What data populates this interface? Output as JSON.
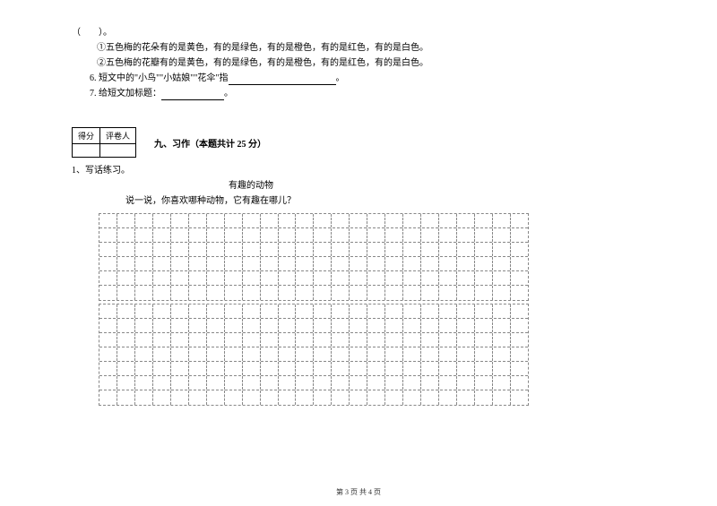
{
  "top": {
    "paren": "（　　）。",
    "option1": "①五色梅的花朵有的是黄色，有的是绿色，有的是橙色，有的是红色，有的是白色。",
    "option2": "②五色梅的花瓣有的是黄色，有的是绿色，有的是橙色，有的是红色，有的是白色。",
    "q6": "6. 短文中的\"小鸟\"\"小姑娘\"\"花伞\"指",
    "q6_end": "。",
    "q7": "7. 给短文加标题：",
    "q7_end": "。"
  },
  "score": {
    "label1": "得分",
    "label2": "评卷人"
  },
  "section": {
    "title": "九、习作（本题共计 25 分）"
  },
  "writing": {
    "q1": "1、写话练习。",
    "subtitle": "有趣的动物",
    "prompt": "说一说，你喜欢哪种动物，它有趣在哪儿？"
  },
  "grid": {
    "cols": 24,
    "block1_rows": 6,
    "block2_rows": 7
  },
  "footer": {
    "text": "第 3 页 共 4 页"
  }
}
